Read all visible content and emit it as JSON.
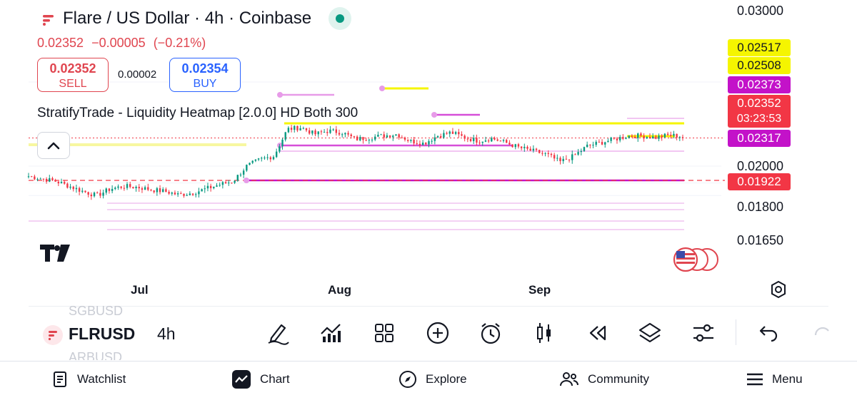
{
  "header": {
    "title": "Flare / US Dollar · 4h · Coinbase",
    "last_price": "0.02352",
    "change": "−0.00005",
    "change_pct": "(−0.21%)"
  },
  "trade": {
    "sell_price": "0.02352",
    "sell_label": "SELL",
    "spread": "0.00002",
    "buy_price": "0.02354",
    "buy_label": "BUY"
  },
  "indicator": {
    "label": "StratifyTrade - Liquidity Heatmap [2.0.0] HD Both 300"
  },
  "price_axis": {
    "ticks": [
      "0.03000",
      "0.02000",
      "0.01800",
      "0.01650"
    ],
    "tags": [
      {
        "value": "0.02517",
        "color": "#f5f500",
        "text_color": "#131722"
      },
      {
        "value": "0.02508",
        "color": "#f5f500",
        "text_color": "#131722"
      },
      {
        "value": "0.02373",
        "color": "#c312c9",
        "text_color": "#ffffff"
      },
      {
        "value": "0.02352",
        "countdown": "03:23:53",
        "color": "#f23645",
        "text_color": "#ffffff"
      },
      {
        "value": "0.02317",
        "color": "#c312c9",
        "text_color": "#ffffff"
      },
      {
        "value": "0.01922",
        "color": "#f23645",
        "text_color": "#ffffff"
      }
    ]
  },
  "time_axis": {
    "labels": [
      "Jul",
      "Aug",
      "Sep"
    ]
  },
  "toolbar": {
    "symbol": "FLRUSD",
    "symbol_prev": "SGBUSD",
    "symbol_next": "ARBUSD",
    "interval": "4h",
    "icons": [
      "draw-pencil-icon",
      "indicators-icon",
      "templates-grid-icon",
      "add-circle-icon",
      "alert-clock-icon",
      "candles-icon",
      "replay-icon",
      "layers-icon",
      "settings-sliders-icon",
      "undo-icon"
    ]
  },
  "bottom_nav": [
    {
      "label": "Watchlist",
      "icon": "watchlist-icon"
    },
    {
      "label": "Chart",
      "icon": "chart-icon"
    },
    {
      "label": "Explore",
      "icon": "compass-icon"
    },
    {
      "label": "Community",
      "icon": "people-icon"
    },
    {
      "label": "Menu",
      "icon": "menu-icon"
    }
  ],
  "colors": {
    "up": "#089981",
    "down": "#f23645",
    "liquidity_yellow": "#f5f500",
    "liquidity_magenta": "#d64ed8"
  },
  "chart_data": {
    "type": "candlestick",
    "symbol": "FLRUSD",
    "interval": "4h",
    "ylim": [
      0.0155,
      0.0305
    ],
    "x_labels": [
      "Jul",
      "Aug",
      "Sep"
    ],
    "approx_close_path": [
      0.0188,
      0.0185,
      0.0182,
      0.0176,
      0.017,
      0.0165,
      0.0173,
      0.0176,
      0.0175,
      0.0172,
      0.017,
      0.0166,
      0.0168,
      0.0173,
      0.0178,
      0.0182,
      0.02,
      0.0208,
      0.0212,
      0.0244,
      0.0246,
      0.0238,
      0.0242,
      0.024,
      0.0232,
      0.0234,
      0.0236,
      0.0238,
      0.023,
      0.0227,
      0.0236,
      0.024,
      0.0234,
      0.023,
      0.0233,
      0.0228,
      0.0222,
      0.0218,
      0.0214,
      0.0205,
      0.0212,
      0.0224,
      0.0228,
      0.0232,
      0.0236,
      0.0236,
      0.0234,
      0.0237,
      0.0235
    ],
    "liquidity_levels": [
      0.02517,
      0.02508,
      0.02373,
      0.02317,
      0.01922
    ]
  }
}
